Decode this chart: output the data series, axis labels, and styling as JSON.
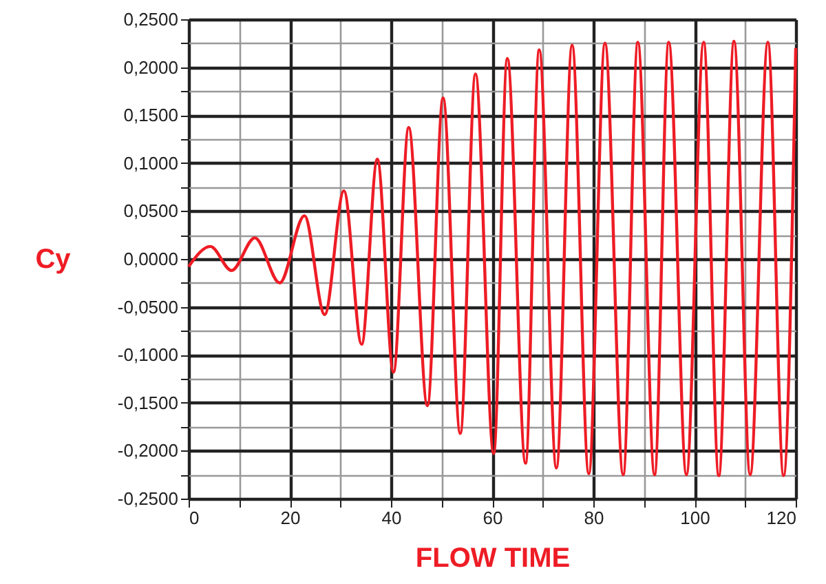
{
  "chart_data": {
    "type": "line",
    "xlabel": "FLOW TIME",
    "ylabel": "Cy",
    "x": [
      0,
      4.3,
      8.5,
      13.1,
      18.0,
      22.9,
      26.9,
      30.7,
      34.2,
      37.3,
      40.5,
      43.5,
      47.2,
      50.3,
      53.7,
      56.7,
      60.3,
      63.0,
      66.6,
      69.3,
      72.7,
      75.8,
      79.1,
      82.3,
      85.9,
      88.8,
      92.1,
      94.9,
      98.4,
      101.8,
      104.8,
      107.8,
      111.0,
      114.5,
      117.6,
      120
    ],
    "series": [
      {
        "color": "#ee1c25",
        "values": [
          -0.008,
          0.013,
          -0.012,
          0.022,
          -0.025,
          0.045,
          -0.058,
          0.071,
          -0.089,
          0.104,
          -0.118,
          0.137,
          -0.153,
          0.168,
          -0.182,
          0.193,
          -0.203,
          0.209,
          -0.213,
          0.218,
          -0.218,
          0.223,
          -0.224,
          0.225,
          -0.225,
          0.226,
          -0.225,
          0.226,
          -0.225,
          0.226,
          -0.226,
          0.227,
          -0.225,
          0.226,
          -0.226,
          0.22
        ]
      }
    ],
    "xlim": [
      0,
      120
    ],
    "xticks": [
      0,
      {
        "value": 10,
        "label": null
      },
      20,
      {
        "value": 30,
        "label": null
      },
      40,
      {
        "value": 50,
        "label": null
      },
      60,
      {
        "value": 70,
        "label": null
      },
      80,
      {
        "value": 90,
        "label": null
      },
      100,
      {
        "value": 110,
        "label": null
      },
      120
    ],
    "ylim": [
      -0.25,
      0.25
    ],
    "yticks": [
      {
        "value": -0.25,
        "label": "-0,2500"
      },
      {
        "value": -0.225,
        "label": null
      },
      {
        "value": -0.2,
        "label": "-0,2000"
      },
      {
        "value": -0.175,
        "label": null
      },
      {
        "value": -0.15,
        "label": "-0,1500"
      },
      {
        "value": -0.125,
        "label": null
      },
      {
        "value": -0.1,
        "label": "-0,1000"
      },
      {
        "value": -0.075,
        "label": null
      },
      {
        "value": -0.05,
        "label": "-0,0500"
      },
      {
        "value": -0.025,
        "label": null
      },
      {
        "value": 0,
        "label": "0,0000"
      },
      {
        "value": 0.025,
        "label": null
      },
      {
        "value": 0.05,
        "label": "0,0500"
      },
      {
        "value": 0.075,
        "label": null
      },
      {
        "value": 0.1,
        "label": "0,1000"
      },
      {
        "value": 0.125,
        "label": null
      },
      {
        "value": 0.15,
        "label": "0,1500"
      },
      {
        "value": 0.175,
        "label": null
      },
      {
        "value": 0.2,
        "label": "0,2000"
      },
      {
        "value": 0.225,
        "label": null
      },
      {
        "value": 0.25,
        "label": "0,2500"
      }
    ],
    "grid": true,
    "marker": "none",
    "line_style": "solid"
  }
}
